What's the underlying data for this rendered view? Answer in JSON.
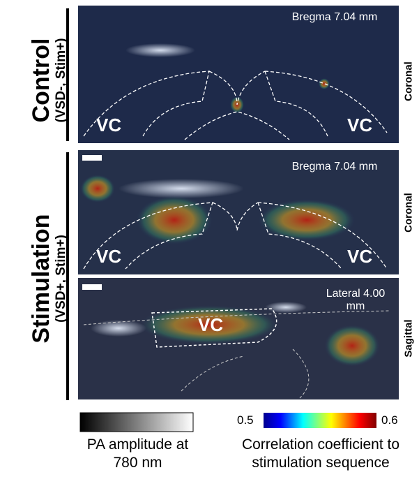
{
  "groups": [
    {
      "title": "Control",
      "subtitle": "(VSD-, Stim+)"
    },
    {
      "title": "Stimulation",
      "subtitle": "(VSD+, Stim+)"
    }
  ],
  "panels": [
    {
      "position": "Bregma 7.04 mm",
      "view": "Coronal",
      "regions": [
        "VC",
        "VC"
      ]
    },
    {
      "position": "Bregma 7.04 mm",
      "view": "Coronal",
      "regions": [
        "VC",
        "VC"
      ]
    },
    {
      "position": "Lateral 4.00 mm",
      "view": "Sagittal",
      "regions": [
        "VC"
      ]
    }
  ],
  "colorbars": [
    {
      "label": "PA amplitude at 780 nm"
    },
    {
      "min": 0.5,
      "max": 0.6,
      "label": "Correlation coefficient to stimulation sequence"
    }
  ]
}
